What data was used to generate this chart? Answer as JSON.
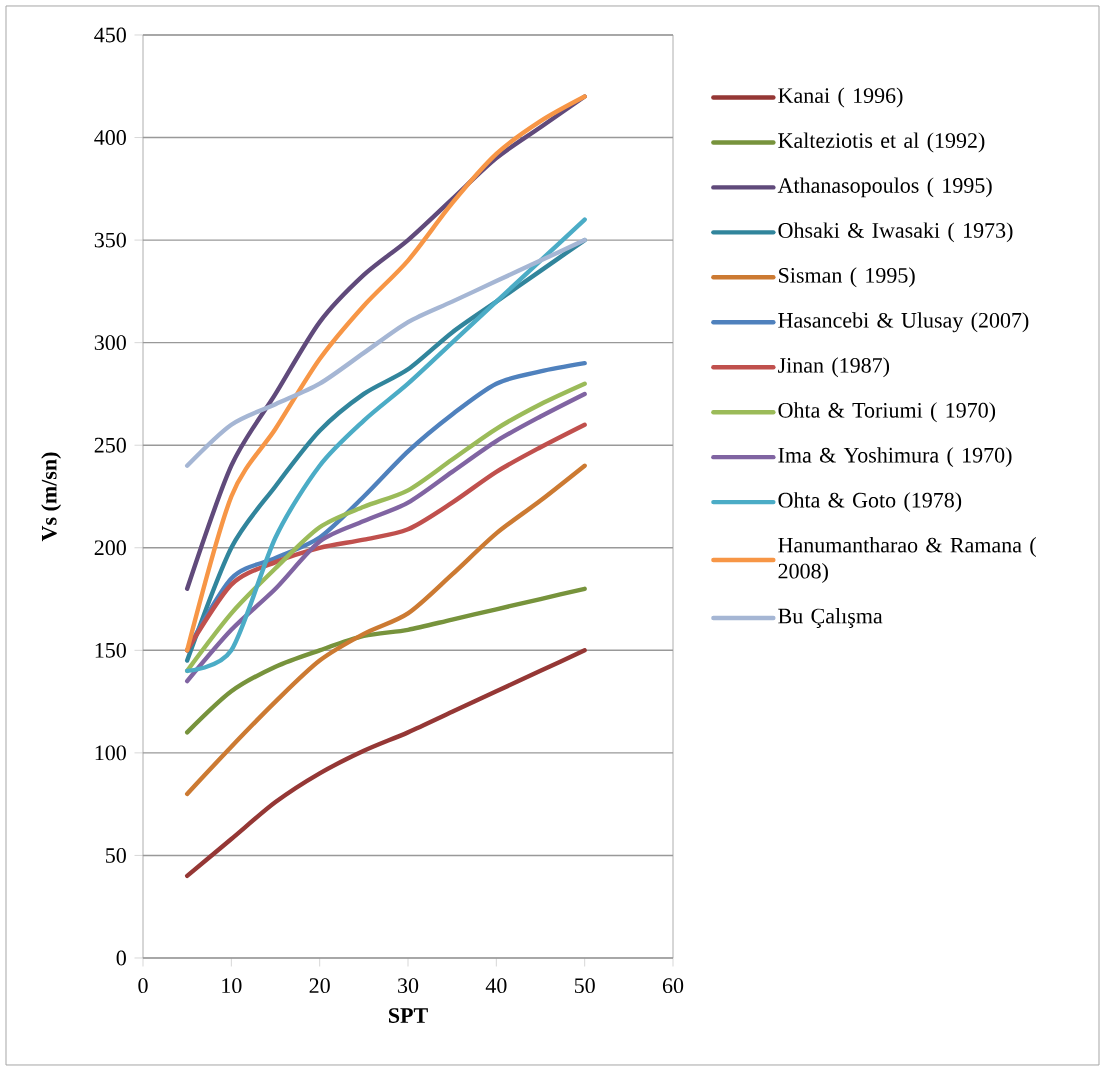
{
  "chart_data": {
    "type": "line",
    "xlabel": "SPT",
    "ylabel": "Vs (m/sn)",
    "x": [
      5,
      10,
      15,
      20,
      25,
      30,
      35,
      40,
      45,
      50
    ],
    "xlim": [
      0,
      60
    ],
    "xticks": [
      0,
      10,
      20,
      30,
      40,
      50,
      60
    ],
    "ylim": [
      0,
      450
    ],
    "yticks": [
      0,
      50,
      100,
      150,
      200,
      250,
      300,
      350,
      400,
      450
    ],
    "grid": "y",
    "legend": "right",
    "marker": "none",
    "line_style": "solid",
    "series": [
      {
        "name": "Kanai ( 1996)",
        "color": "#953735",
        "values": [
          40,
          58,
          76,
          90,
          101,
          110,
          120,
          130,
          140,
          150
        ]
      },
      {
        "name": "Kalteziotis et al (1992)",
        "color": "#77933c",
        "values": [
          110,
          130,
          142,
          150,
          157,
          160,
          165,
          170,
          175,
          180
        ]
      },
      {
        "name": "Athanasopoulos ( 1995)",
        "color": "#604a7b",
        "values": [
          180,
          240,
          275,
          310,
          333,
          350,
          370,
          390,
          405,
          420
        ]
      },
      {
        "name": "Ohsaki & Iwasaki ( 1973)",
        "color": "#31859c",
        "values": [
          145,
          200,
          230,
          257,
          275,
          287,
          305,
          320,
          335,
          350
        ]
      },
      {
        "name": "Sisman ( 1995)",
        "color": "#cc7a32",
        "values": [
          80,
          103,
          125,
          145,
          158,
          168,
          187,
          207,
          223,
          240
        ]
      },
      {
        "name": "Hasancebi & Ulusay (2007)",
        "color": "#4f81bd",
        "values": [
          150,
          185,
          195,
          205,
          225,
          247,
          265,
          280,
          286,
          290
        ]
      },
      {
        "name": "Jinan (1987)",
        "color": "#c0504d",
        "values": [
          150,
          182,
          193,
          200,
          204,
          209,
          222,
          237,
          249,
          260
        ]
      },
      {
        "name": "Ohta & Toriumi ( 1970)",
        "color": "#9bbb59",
        "values": [
          140,
          168,
          190,
          210,
          220,
          228,
          243,
          258,
          270,
          280
        ]
      },
      {
        "name": "Ima & Yoshimura ( 1970)",
        "color": "#8064a2",
        "values": [
          135,
          160,
          180,
          203,
          213,
          222,
          237,
          252,
          264,
          275
        ]
      },
      {
        "name": "Ohta & Goto (1978)",
        "color": "#4bacc6",
        "values": [
          140,
          150,
          205,
          240,
          262,
          280,
          300,
          320,
          340,
          360
        ]
      },
      {
        "name": "Hanumantharao & Ramana ( 2008)",
        "color": "#f79646",
        "values": [
          150,
          225,
          258,
          292,
          318,
          340,
          368,
          392,
          408,
          420
        ]
      },
      {
        "name": "Bu Çalışma",
        "color": "#a5b6d4",
        "values": [
          240,
          260,
          270,
          280,
          295,
          310,
          320,
          330,
          340,
          350
        ]
      }
    ]
  }
}
